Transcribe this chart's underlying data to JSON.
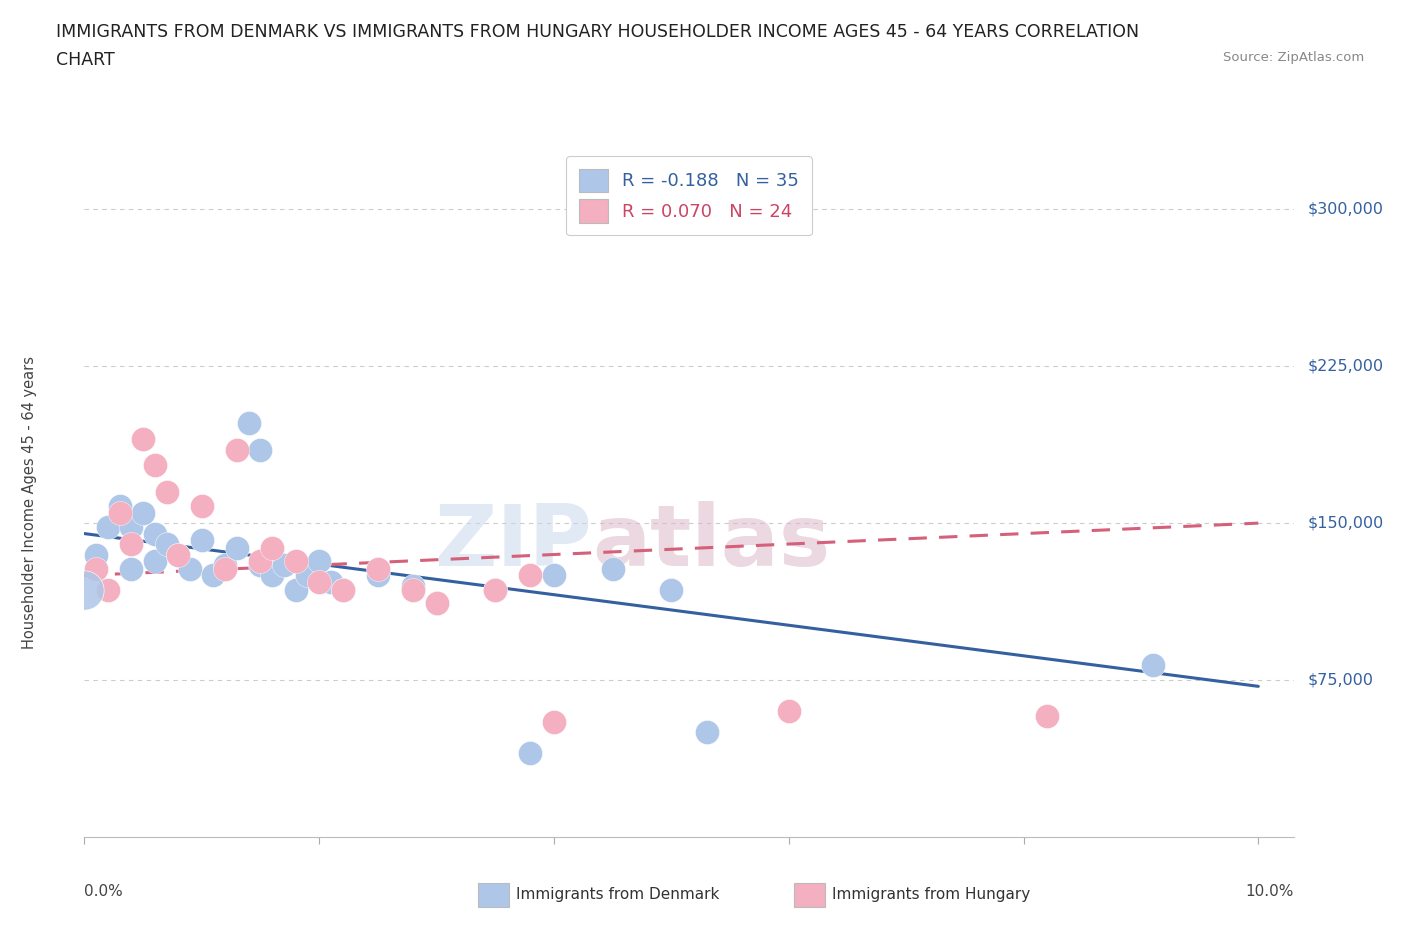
{
  "title_line1": "IMMIGRANTS FROM DENMARK VS IMMIGRANTS FROM HUNGARY HOUSEHOLDER INCOME AGES 45 - 64 YEARS CORRELATION",
  "title_line2": "CHART",
  "source": "Source: ZipAtlas.com",
  "ylabel": "Householder Income Ages 45 - 64 years",
  "legend_r1": "R = -0.188   N = 35",
  "legend_r2": "R = 0.070   N = 24",
  "watermark_zip": "ZIP",
  "watermark_atlas": "atlas",
  "denmark_color": "#aec6e8",
  "hungary_color": "#f4afc0",
  "denmark_line_color": "#3560a0",
  "hungary_line_color": "#d4607a",
  "denmark_points": [
    [
      0.001,
      135000
    ],
    [
      0.002,
      148000
    ],
    [
      0.003,
      158000
    ],
    [
      0.004,
      148000
    ],
    [
      0.004,
      128000
    ],
    [
      0.005,
      155000
    ],
    [
      0.006,
      145000
    ],
    [
      0.006,
      132000
    ],
    [
      0.007,
      140000
    ],
    [
      0.008,
      135000
    ],
    [
      0.009,
      128000
    ],
    [
      0.01,
      142000
    ],
    [
      0.011,
      125000
    ],
    [
      0.012,
      130000
    ],
    [
      0.013,
      138000
    ],
    [
      0.014,
      198000
    ],
    [
      0.015,
      185000
    ],
    [
      0.015,
      130000
    ],
    [
      0.016,
      125000
    ],
    [
      0.017,
      130000
    ],
    [
      0.018,
      118000
    ],
    [
      0.019,
      125000
    ],
    [
      0.02,
      132000
    ],
    [
      0.021,
      122000
    ],
    [
      0.022,
      118000
    ],
    [
      0.025,
      125000
    ],
    [
      0.028,
      120000
    ],
    [
      0.03,
      112000
    ],
    [
      0.035,
      118000
    ],
    [
      0.045,
      128000
    ],
    [
      0.05,
      118000
    ],
    [
      0.04,
      125000
    ],
    [
      0.038,
      40000
    ],
    [
      0.053,
      50000
    ],
    [
      0.091,
      82000
    ]
  ],
  "hungary_points": [
    [
      0.001,
      128000
    ],
    [
      0.002,
      118000
    ],
    [
      0.003,
      155000
    ],
    [
      0.004,
      140000
    ],
    [
      0.005,
      190000
    ],
    [
      0.006,
      178000
    ],
    [
      0.007,
      165000
    ],
    [
      0.008,
      135000
    ],
    [
      0.01,
      158000
    ],
    [
      0.012,
      128000
    ],
    [
      0.013,
      185000
    ],
    [
      0.015,
      132000
    ],
    [
      0.016,
      138000
    ],
    [
      0.018,
      132000
    ],
    [
      0.02,
      122000
    ],
    [
      0.022,
      118000
    ],
    [
      0.025,
      128000
    ],
    [
      0.028,
      118000
    ],
    [
      0.03,
      112000
    ],
    [
      0.035,
      118000
    ],
    [
      0.038,
      125000
    ],
    [
      0.04,
      55000
    ],
    [
      0.06,
      60000
    ],
    [
      0.082,
      58000
    ]
  ],
  "denmark_trendline": [
    [
      0.0,
      145000
    ],
    [
      0.1,
      72000
    ]
  ],
  "hungary_trendline": [
    [
      0.0,
      125000
    ],
    [
      0.1,
      150000
    ]
  ],
  "yticks": [
    75000,
    150000,
    225000,
    300000
  ],
  "ytick_labels": [
    "$75,000",
    "$150,000",
    "$225,000",
    "$300,000"
  ],
  "xticks": [
    0.0,
    0.02,
    0.04,
    0.06,
    0.08,
    0.1
  ],
  "grid_color": "#cccccc",
  "background_color": "#ffffff",
  "xlim": [
    0.0,
    0.103
  ],
  "ylim": [
    0,
    320000
  ],
  "legend_dk_label": "Immigrants from Denmark",
  "legend_hu_label": "Immigrants from Hungary"
}
